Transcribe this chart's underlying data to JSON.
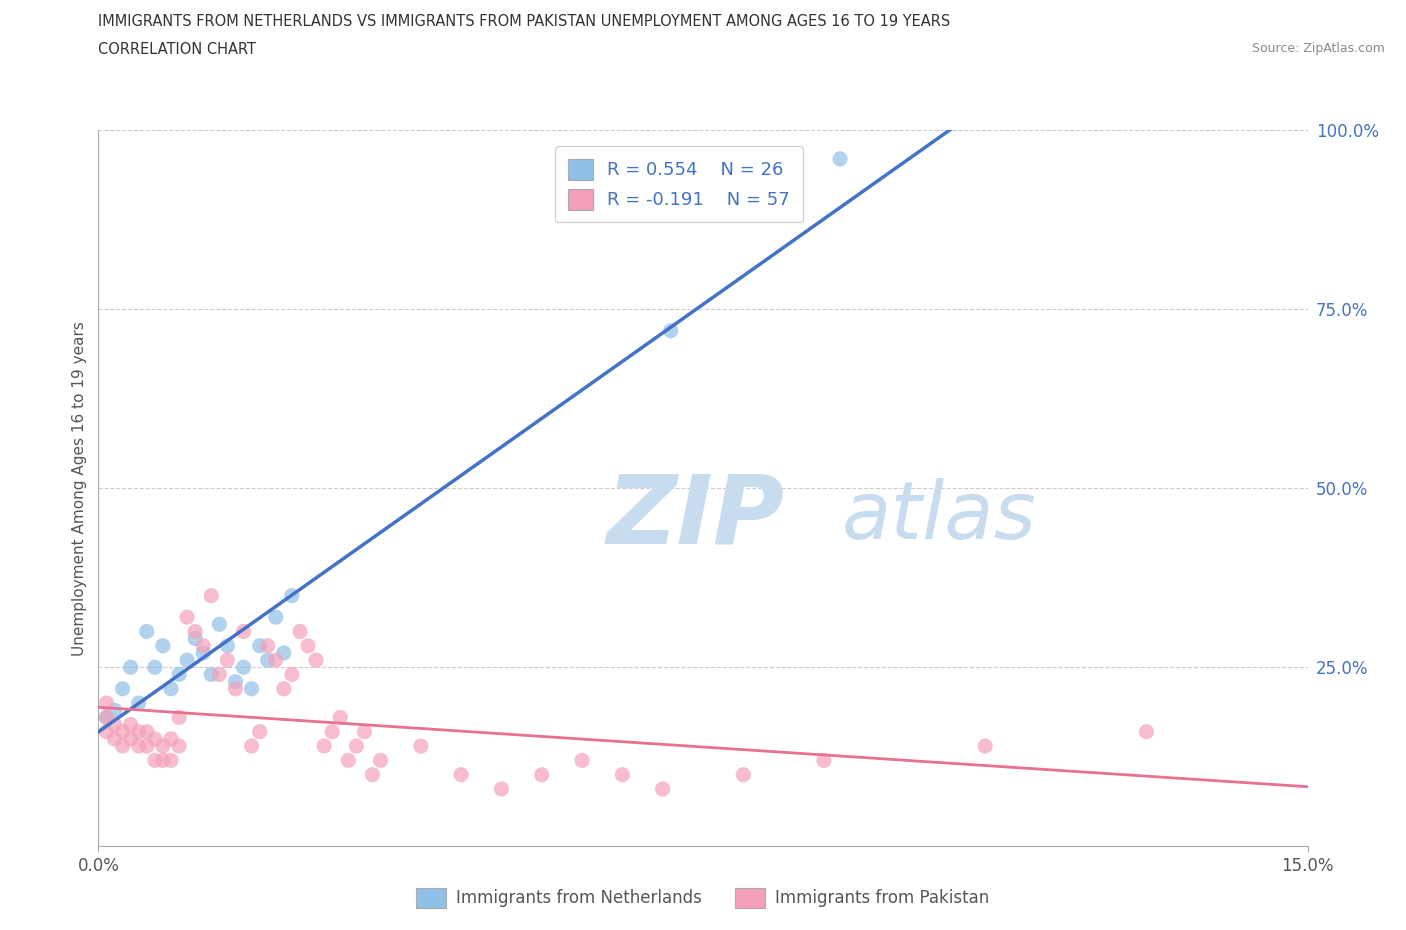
{
  "title_line1": "IMMIGRANTS FROM NETHERLANDS VS IMMIGRANTS FROM PAKISTAN UNEMPLOYMENT AMONG AGES 16 TO 19 YEARS",
  "title_line2": "CORRELATION CHART",
  "source_text": "Source: ZipAtlas.com",
  "ylabel": "Unemployment Among Ages 16 to 19 years",
  "xlim": [
    0.0,
    0.15
  ],
  "ylim": [
    0.0,
    1.0
  ],
  "xtick_positions": [
    0.0,
    0.15
  ],
  "xticklabels": [
    "0.0%",
    "15.0%"
  ],
  "ytick_positions": [
    0.25,
    0.5,
    0.75,
    1.0
  ],
  "ytick_labels": [
    "25.0%",
    "50.0%",
    "75.0%",
    "100.0%"
  ],
  "netherlands_dot_color": "#90C0E8",
  "pakistan_dot_color": "#F4A0B8",
  "netherlands_line_color": "#4472C4",
  "pakistan_line_color": "#E87090",
  "r_netherlands": 0.554,
  "n_netherlands": 26,
  "r_pakistan": -0.191,
  "n_pakistan": 57,
  "watermark_zip": "ZIP",
  "watermark_atlas": "atlas",
  "watermark_color": "#C8DCF0",
  "legend_label_netherlands": "Immigrants from Netherlands",
  "legend_label_pakistan": "Immigrants from Pakistan",
  "nl_x": [
    0.001,
    0.002,
    0.003,
    0.004,
    0.005,
    0.006,
    0.007,
    0.008,
    0.009,
    0.01,
    0.011,
    0.012,
    0.013,
    0.014,
    0.015,
    0.016,
    0.017,
    0.018,
    0.019,
    0.02,
    0.021,
    0.022,
    0.023,
    0.024,
    0.071,
    0.092
  ],
  "nl_y": [
    0.18,
    0.19,
    0.22,
    0.25,
    0.2,
    0.3,
    0.25,
    0.28,
    0.22,
    0.24,
    0.26,
    0.29,
    0.27,
    0.24,
    0.31,
    0.28,
    0.23,
    0.25,
    0.22,
    0.28,
    0.26,
    0.32,
    0.27,
    0.35,
    0.72,
    0.96
  ],
  "pk_x": [
    0.001,
    0.001,
    0.001,
    0.002,
    0.002,
    0.003,
    0.003,
    0.004,
    0.004,
    0.005,
    0.005,
    0.006,
    0.006,
    0.007,
    0.007,
    0.008,
    0.008,
    0.009,
    0.009,
    0.01,
    0.01,
    0.011,
    0.012,
    0.013,
    0.014,
    0.015,
    0.016,
    0.017,
    0.018,
    0.019,
    0.02,
    0.021,
    0.022,
    0.023,
    0.024,
    0.025,
    0.026,
    0.027,
    0.028,
    0.029,
    0.03,
    0.031,
    0.032,
    0.033,
    0.034,
    0.035,
    0.04,
    0.045,
    0.05,
    0.055,
    0.06,
    0.065,
    0.07,
    0.08,
    0.09,
    0.11,
    0.13
  ],
  "pk_y": [
    0.16,
    0.18,
    0.2,
    0.15,
    0.17,
    0.14,
    0.16,
    0.15,
    0.17,
    0.14,
    0.16,
    0.14,
    0.16,
    0.15,
    0.12,
    0.14,
    0.12,
    0.15,
    0.12,
    0.14,
    0.18,
    0.32,
    0.3,
    0.28,
    0.35,
    0.24,
    0.26,
    0.22,
    0.3,
    0.14,
    0.16,
    0.28,
    0.26,
    0.22,
    0.24,
    0.3,
    0.28,
    0.26,
    0.14,
    0.16,
    0.18,
    0.12,
    0.14,
    0.16,
    0.1,
    0.12,
    0.14,
    0.1,
    0.08,
    0.1,
    0.12,
    0.1,
    0.08,
    0.1,
    0.12,
    0.14,
    0.16
  ]
}
